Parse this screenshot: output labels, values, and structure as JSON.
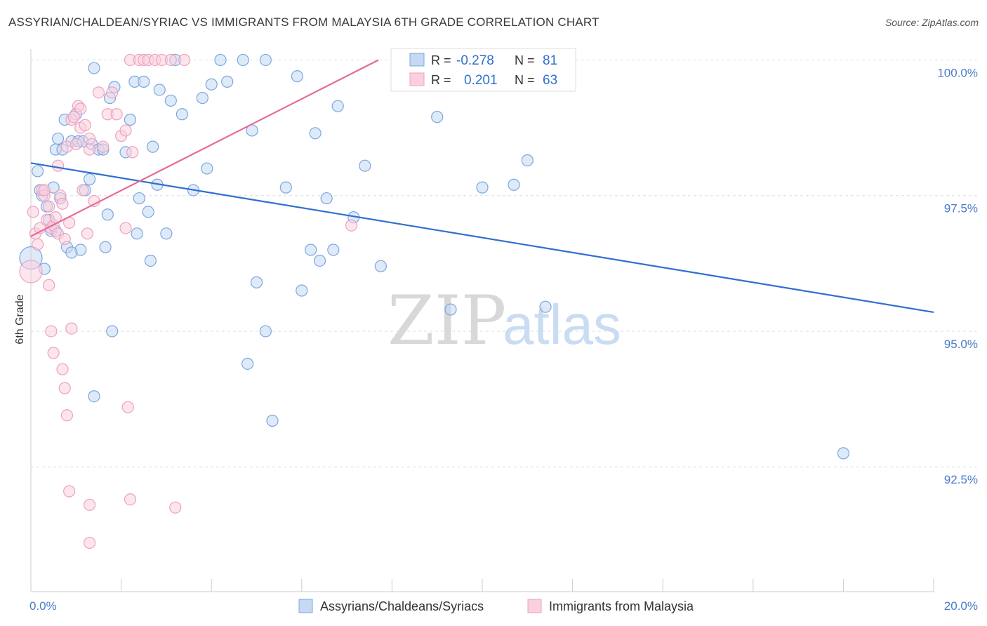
{
  "title": "ASSYRIAN/CHALDEAN/SYRIAC VS IMMIGRANTS FROM MALAYSIA 6TH GRADE CORRELATION CHART",
  "source": "Source: ZipAtlas.com",
  "watermark": {
    "zip": "ZIP",
    "atlas": "atlas"
  },
  "legend_top": [
    {
      "r_label": "R =",
      "r_value": "-0.278",
      "n_label": "N =",
      "n_value": "81"
    },
    {
      "r_label": "R =",
      "r_value": "0.201",
      "n_label": "N =",
      "n_value": "63"
    }
  ],
  "chart_data": {
    "type": "scatter",
    "xlabel": "",
    "ylabel": "6th Grade",
    "xlim": [
      0,
      20
    ],
    "ylim": [
      90.2,
      100.2
    ],
    "x_tick_labels": [
      {
        "value": 0,
        "label": "0.0%"
      },
      {
        "value": 20,
        "label": "20.0%"
      }
    ],
    "y_tick_labels": [
      {
        "value": 100,
        "label": "100.0%"
      },
      {
        "value": 97.5,
        "label": "97.5%"
      },
      {
        "value": 95,
        "label": "95.0%"
      },
      {
        "value": 92.5,
        "label": "92.5%"
      }
    ],
    "series": [
      {
        "name": "Assyrians/Chaldeans/Syriacs",
        "color": "#7aa7e0",
        "fill": "#c5d9f2",
        "line_color": "#2f6fd0",
        "trend": {
          "x0": 0.0,
          "y0": 98.1,
          "x1": 20.0,
          "y1": 95.35
        },
        "points": [
          [
            0.0,
            96.35
          ],
          [
            0.15,
            97.95
          ],
          [
            0.2,
            97.6
          ],
          [
            0.25,
            97.5
          ],
          [
            0.3,
            96.15
          ],
          [
            0.35,
            97.3
          ],
          [
            0.4,
            97.05
          ],
          [
            0.45,
            96.85
          ],
          [
            0.5,
            97.65
          ],
          [
            0.55,
            98.35
          ],
          [
            0.6,
            98.55
          ],
          [
            0.65,
            97.45
          ],
          [
            0.7,
            98.35
          ],
          [
            0.75,
            98.9
          ],
          [
            0.8,
            96.55
          ],
          [
            0.9,
            98.5
          ],
          [
            1.0,
            99.0
          ],
          [
            1.05,
            98.5
          ],
          [
            1.1,
            96.5
          ],
          [
            1.15,
            98.5
          ],
          [
            1.2,
            97.6
          ],
          [
            1.3,
            97.8
          ],
          [
            1.35,
            98.45
          ],
          [
            1.4,
            99.85
          ],
          [
            1.5,
            98.35
          ],
          [
            1.6,
            98.35
          ],
          [
            1.7,
            97.15
          ],
          [
            1.75,
            99.3
          ],
          [
            1.85,
            99.5
          ],
          [
            2.1,
            98.3
          ],
          [
            2.2,
            98.9
          ],
          [
            2.3,
            99.6
          ],
          [
            2.4,
            97.45
          ],
          [
            2.5,
            99.6
          ],
          [
            2.6,
            97.2
          ],
          [
            2.7,
            98.4
          ],
          [
            2.8,
            97.7
          ],
          [
            2.85,
            99.45
          ],
          [
            3.0,
            96.8
          ],
          [
            3.2,
            100.0
          ],
          [
            3.35,
            99.0
          ],
          [
            3.6,
            97.6
          ],
          [
            3.8,
            99.3
          ],
          [
            3.9,
            98.0
          ],
          [
            4.0,
            99.55
          ],
          [
            4.2,
            100.0
          ],
          [
            4.35,
            99.6
          ],
          [
            4.7,
            100.0
          ],
          [
            4.9,
            98.7
          ],
          [
            5.2,
            100.0
          ],
          [
            5.0,
            95.9
          ],
          [
            5.65,
            97.65
          ],
          [
            5.9,
            99.7
          ],
          [
            6.0,
            95.75
          ],
          [
            6.2,
            96.5
          ],
          [
            6.3,
            98.65
          ],
          [
            6.4,
            96.3
          ],
          [
            6.55,
            97.45
          ],
          [
            6.7,
            96.5
          ],
          [
            6.8,
            99.15
          ],
          [
            7.15,
            97.1
          ],
          [
            7.4,
            98.05
          ],
          [
            7.75,
            96.2
          ],
          [
            9.0,
            98.95
          ],
          [
            9.3,
            95.4
          ],
          [
            10.0,
            97.65
          ],
          [
            10.7,
            97.7
          ],
          [
            11.0,
            98.15
          ],
          [
            11.4,
            95.45
          ],
          [
            18.0,
            92.75
          ],
          [
            1.4,
            93.8
          ],
          [
            1.8,
            95.0
          ],
          [
            4.8,
            94.4
          ],
          [
            5.35,
            93.35
          ],
          [
            0.9,
            96.45
          ],
          [
            2.35,
            96.8
          ],
          [
            2.65,
            96.3
          ],
          [
            3.1,
            99.25
          ],
          [
            1.65,
            96.55
          ],
          [
            5.2,
            95.0
          ],
          [
            0.55,
            96.85
          ]
        ]
      },
      {
        "name": "Immigrants from Malaysia",
        "color": "#f0a0bd",
        "fill": "#f9d0df",
        "line_color": "#e56a96",
        "trend": {
          "x0": 0.0,
          "y0": 96.75,
          "x1": 7.7,
          "y1": 100.0
        },
        "points": [
          [
            0.0,
            96.1
          ],
          [
            0.05,
            97.2
          ],
          [
            0.1,
            96.8
          ],
          [
            0.15,
            96.6
          ],
          [
            0.2,
            96.9
          ],
          [
            0.25,
            97.6
          ],
          [
            0.3,
            97.5
          ],
          [
            0.35,
            97.05
          ],
          [
            0.4,
            97.3
          ],
          [
            0.45,
            96.9
          ],
          [
            0.5,
            96.95
          ],
          [
            0.55,
            97.1
          ],
          [
            0.6,
            96.8
          ],
          [
            0.65,
            97.5
          ],
          [
            0.7,
            97.35
          ],
          [
            0.75,
            96.7
          ],
          [
            0.8,
            98.4
          ],
          [
            0.85,
            97.0
          ],
          [
            0.9,
            98.9
          ],
          [
            1.0,
            98.45
          ],
          [
            1.05,
            99.15
          ],
          [
            1.1,
            98.75
          ],
          [
            1.15,
            97.6
          ],
          [
            1.2,
            98.8
          ],
          [
            1.3,
            98.55
          ],
          [
            1.4,
            97.4
          ],
          [
            1.5,
            99.4
          ],
          [
            1.6,
            98.4
          ],
          [
            1.7,
            99.0
          ],
          [
            1.8,
            99.4
          ],
          [
            1.9,
            99.0
          ],
          [
            2.0,
            98.6
          ],
          [
            2.1,
            98.7
          ],
          [
            2.2,
            100.0
          ],
          [
            2.4,
            100.0
          ],
          [
            2.5,
            100.0
          ],
          [
            2.6,
            100.0
          ],
          [
            2.75,
            100.0
          ],
          [
            2.9,
            100.0
          ],
          [
            3.1,
            100.0
          ],
          [
            3.4,
            100.0
          ],
          [
            0.3,
            97.6
          ],
          [
            0.4,
            95.85
          ],
          [
            0.45,
            95.0
          ],
          [
            0.5,
            94.6
          ],
          [
            0.7,
            94.3
          ],
          [
            0.75,
            93.95
          ],
          [
            0.8,
            93.45
          ],
          [
            0.85,
            92.05
          ],
          [
            0.9,
            95.05
          ],
          [
            1.3,
            91.8
          ],
          [
            1.3,
            91.1
          ],
          [
            2.15,
            93.6
          ],
          [
            2.2,
            91.9
          ],
          [
            3.2,
            91.75
          ],
          [
            2.1,
            96.9
          ],
          [
            2.25,
            98.3
          ],
          [
            7.1,
            96.95
          ],
          [
            1.1,
            99.1
          ],
          [
            0.6,
            98.05
          ],
          [
            1.3,
            98.35
          ],
          [
            0.95,
            98.95
          ],
          [
            1.25,
            96.8
          ]
        ]
      }
    ],
    "legend_position": "bottom-center"
  }
}
